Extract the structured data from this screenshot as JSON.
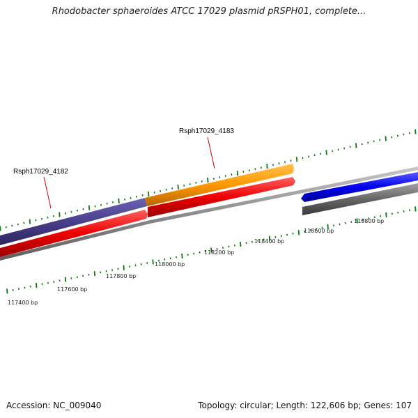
{
  "title": "Rhodobacter sphaeroides ATCC 17029 plasmid pRSPH01, complete...",
  "footer": {
    "accession": "Accession: NC_009040",
    "summary": "Topology: circular; Length: 122,606 bp; Genes: 107"
  },
  "colors": {
    "tick_green": "#0a7a0a",
    "genome_gray": "#8c8c8c",
    "gene_label_red": "#cc0000",
    "purple_gene": "#4a3f8c",
    "orange_gene": "#ff9900",
    "red_gene": "#ee0000",
    "blue_gene": "#0000ee",
    "gray_gene": "#666666"
  },
  "scale": {
    "labels": [
      "117400 bp",
      "117600 bp",
      "117800 bp",
      "118000 bp",
      "118200 bp",
      "118400 bp",
      "118600 bp",
      "118800 bp"
    ]
  },
  "genes": [
    {
      "name": "Rsph17029_4182",
      "color": "purple_gene",
      "track": "outer",
      "strand": "forward"
    },
    {
      "name": "Rsph17029_4183",
      "color": "orange_gene",
      "track": "outer",
      "strand": "forward"
    },
    {
      "name": "",
      "color": "red_gene",
      "track": "middle",
      "strand": "forward"
    },
    {
      "name": "",
      "color": "red_gene",
      "track": "middle",
      "strand": "forward"
    },
    {
      "name": "",
      "color": "blue_gene",
      "track": "inner",
      "strand": "reverse"
    },
    {
      "name": "",
      "color": "gray_gene",
      "track": "inner",
      "strand": "reverse"
    }
  ]
}
